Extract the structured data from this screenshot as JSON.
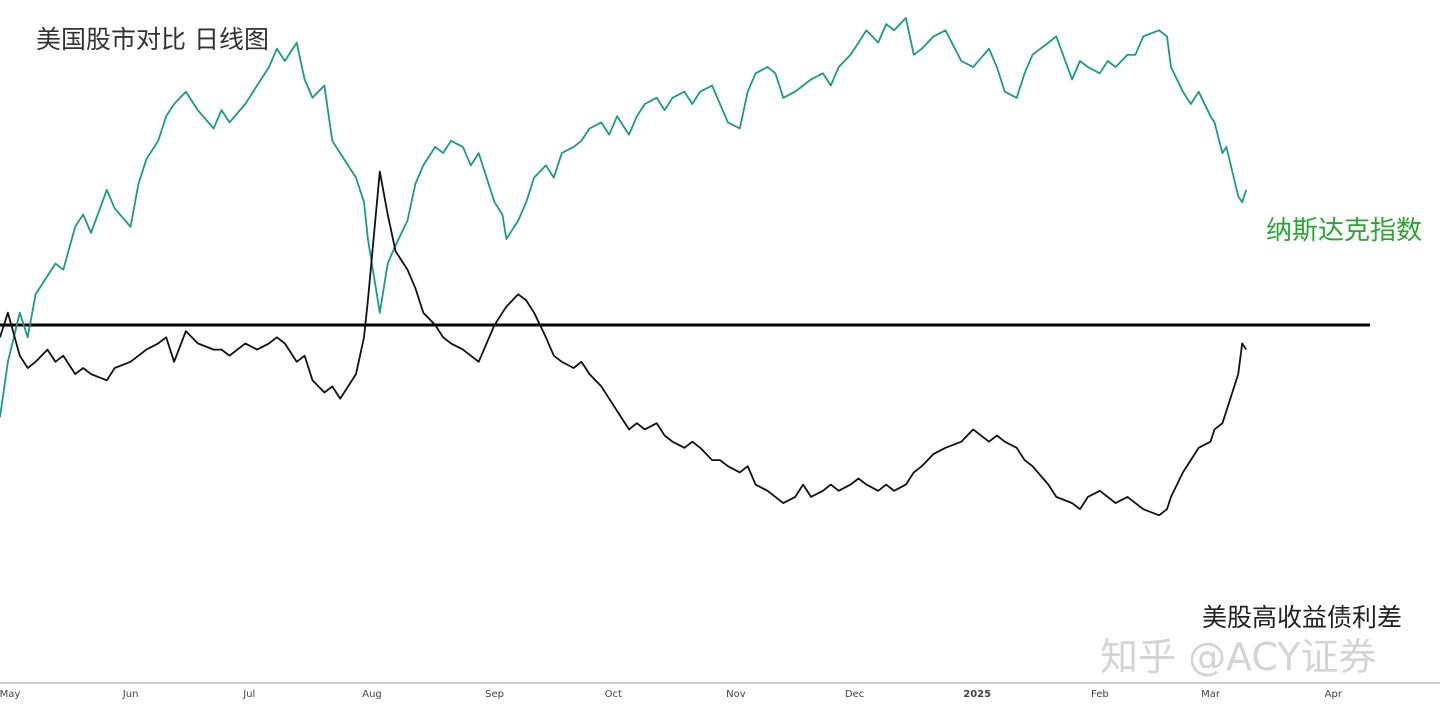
{
  "title": "美国股市对比 日线图",
  "watermark": "知乎 @ACY证券",
  "colors": {
    "nasdaq": "#1a9a8a",
    "spread": "#111111",
    "nasdaq_label": "#2aa532",
    "reference": "#000000"
  },
  "chart_data": {
    "type": "line",
    "x_labels": [
      "May",
      "Jun",
      "Jul",
      "Aug",
      "Sep",
      "Oct",
      "Nov",
      "Dec",
      "2025",
      "Feb",
      "Mar",
      "Apr"
    ],
    "x_bold": [
      "2025"
    ],
    "x_range": [
      "2024-05-01",
      "2025-04-30"
    ],
    "y_axis": "hidden",
    "ylim": [
      0,
      100
    ],
    "grid": false,
    "reference_line": {
      "y": 50
    },
    "series": [
      {
        "name": "纳斯达克指数",
        "points": [
          [
            "2024-05-01",
            35
          ],
          [
            "2024-05-03",
            44
          ],
          [
            "2024-05-06",
            52
          ],
          [
            "2024-05-08",
            48
          ],
          [
            "2024-05-10",
            55
          ],
          [
            "2024-05-13",
            58
          ],
          [
            "2024-05-15",
            60
          ],
          [
            "2024-05-17",
            59
          ],
          [
            "2024-05-20",
            66
          ],
          [
            "2024-05-22",
            68
          ],
          [
            "2024-05-24",
            65
          ],
          [
            "2024-05-28",
            72
          ],
          [
            "2024-05-30",
            69
          ],
          [
            "2024-06-03",
            66
          ],
          [
            "2024-06-05",
            73
          ],
          [
            "2024-06-07",
            77
          ],
          [
            "2024-06-10",
            80
          ],
          [
            "2024-06-12",
            84
          ],
          [
            "2024-06-14",
            86
          ],
          [
            "2024-06-17",
            88
          ],
          [
            "2024-06-20",
            85
          ],
          [
            "2024-06-24",
            82
          ],
          [
            "2024-06-26",
            85
          ],
          [
            "2024-06-28",
            83
          ],
          [
            "2024-07-02",
            86
          ],
          [
            "2024-07-05",
            89
          ],
          [
            "2024-07-08",
            92
          ],
          [
            "2024-07-10",
            95
          ],
          [
            "2024-07-12",
            93
          ],
          [
            "2024-07-15",
            96
          ],
          [
            "2024-07-17",
            90
          ],
          [
            "2024-07-19",
            87
          ],
          [
            "2024-07-22",
            89
          ],
          [
            "2024-07-24",
            80
          ],
          [
            "2024-07-26",
            78
          ],
          [
            "2024-07-30",
            74
          ],
          [
            "2024-08-01",
            70
          ],
          [
            "2024-08-02",
            64
          ],
          [
            "2024-08-05",
            52
          ],
          [
            "2024-08-07",
            60
          ],
          [
            "2024-08-09",
            63
          ],
          [
            "2024-08-12",
            67
          ],
          [
            "2024-08-14",
            73
          ],
          [
            "2024-08-16",
            76
          ],
          [
            "2024-08-19",
            79
          ],
          [
            "2024-08-21",
            78
          ],
          [
            "2024-08-23",
            80
          ],
          [
            "2024-08-26",
            79
          ],
          [
            "2024-08-28",
            76
          ],
          [
            "2024-08-30",
            78
          ],
          [
            "2024-09-03",
            70
          ],
          [
            "2024-09-05",
            68
          ],
          [
            "2024-09-06",
            64
          ],
          [
            "2024-09-09",
            67
          ],
          [
            "2024-09-11",
            70
          ],
          [
            "2024-09-13",
            74
          ],
          [
            "2024-09-16",
            76
          ],
          [
            "2024-09-18",
            74
          ],
          [
            "2024-09-20",
            78
          ],
          [
            "2024-09-23",
            79
          ],
          [
            "2024-09-25",
            80
          ],
          [
            "2024-09-27",
            82
          ],
          [
            "2024-09-30",
            83
          ],
          [
            "2024-10-02",
            81
          ],
          [
            "2024-10-04",
            84
          ],
          [
            "2024-10-07",
            81
          ],
          [
            "2024-10-09",
            84
          ],
          [
            "2024-10-11",
            86
          ],
          [
            "2024-10-14",
            87
          ],
          [
            "2024-10-16",
            85
          ],
          [
            "2024-10-18",
            87
          ],
          [
            "2024-10-21",
            88
          ],
          [
            "2024-10-23",
            86
          ],
          [
            "2024-10-25",
            88
          ],
          [
            "2024-10-28",
            89
          ],
          [
            "2024-10-30",
            86
          ],
          [
            "2024-11-01",
            83
          ],
          [
            "2024-11-04",
            82
          ],
          [
            "2024-11-06",
            88
          ],
          [
            "2024-11-08",
            91
          ],
          [
            "2024-11-11",
            92
          ],
          [
            "2024-11-13",
            91
          ],
          [
            "2024-11-15",
            87
          ],
          [
            "2024-11-18",
            88
          ],
          [
            "2024-11-20",
            89
          ],
          [
            "2024-11-22",
            90
          ],
          [
            "2024-11-25",
            91
          ],
          [
            "2024-11-27",
            89
          ],
          [
            "2024-11-29",
            92
          ],
          [
            "2024-12-02",
            94
          ],
          [
            "2024-12-04",
            96
          ],
          [
            "2024-12-06",
            98
          ],
          [
            "2024-12-09",
            96
          ],
          [
            "2024-12-11",
            99
          ],
          [
            "2024-12-13",
            98
          ],
          [
            "2024-12-16",
            100
          ],
          [
            "2024-12-18",
            94
          ],
          [
            "2024-12-20",
            95
          ],
          [
            "2024-12-23",
            97
          ],
          [
            "2024-12-26",
            98
          ],
          [
            "2024-12-30",
            93
          ],
          [
            "2025-01-02",
            92
          ],
          [
            "2025-01-06",
            95
          ],
          [
            "2025-01-08",
            92
          ],
          [
            "2025-01-10",
            88
          ],
          [
            "2025-01-13",
            87
          ],
          [
            "2025-01-15",
            91
          ],
          [
            "2025-01-17",
            94
          ],
          [
            "2025-01-21",
            96
          ],
          [
            "2025-01-23",
            97
          ],
          [
            "2025-01-27",
            90
          ],
          [
            "2025-01-29",
            93
          ],
          [
            "2025-01-31",
            92
          ],
          [
            "2025-02-03",
            91
          ],
          [
            "2025-02-05",
            93
          ],
          [
            "2025-02-07",
            92
          ],
          [
            "2025-02-10",
            94
          ],
          [
            "2025-02-12",
            94
          ],
          [
            "2025-02-14",
            97
          ],
          [
            "2025-02-18",
            98
          ],
          [
            "2025-02-20",
            97
          ],
          [
            "2025-02-21",
            92
          ],
          [
            "2025-02-24",
            88
          ],
          [
            "2025-02-26",
            86
          ],
          [
            "2025-02-28",
            88
          ],
          [
            "2025-03-03",
            84
          ],
          [
            "2025-03-04",
            83
          ],
          [
            "2025-03-06",
            78
          ],
          [
            "2025-03-07",
            79
          ],
          [
            "2025-03-10",
            71
          ],
          [
            "2025-03-11",
            70
          ],
          [
            "2025-03-12",
            72
          ]
        ]
      },
      {
        "name": "美股高收益债利差",
        "points": [
          [
            "2024-05-01",
            48
          ],
          [
            "2024-05-03",
            52
          ],
          [
            "2024-05-06",
            45
          ],
          [
            "2024-05-08",
            43
          ],
          [
            "2024-05-10",
            44
          ],
          [
            "2024-05-13",
            46
          ],
          [
            "2024-05-15",
            44
          ],
          [
            "2024-05-17",
            45
          ],
          [
            "2024-05-20",
            42
          ],
          [
            "2024-05-22",
            43
          ],
          [
            "2024-05-24",
            42
          ],
          [
            "2024-05-28",
            41
          ],
          [
            "2024-05-30",
            43
          ],
          [
            "2024-06-03",
            44
          ],
          [
            "2024-06-05",
            45
          ],
          [
            "2024-06-07",
            46
          ],
          [
            "2024-06-10",
            47
          ],
          [
            "2024-06-12",
            48
          ],
          [
            "2024-06-14",
            44
          ],
          [
            "2024-06-17",
            49
          ],
          [
            "2024-06-20",
            47
          ],
          [
            "2024-06-24",
            46
          ],
          [
            "2024-06-26",
            46
          ],
          [
            "2024-06-28",
            45
          ],
          [
            "2024-07-02",
            47
          ],
          [
            "2024-07-05",
            46
          ],
          [
            "2024-07-08",
            47
          ],
          [
            "2024-07-10",
            48
          ],
          [
            "2024-07-12",
            47
          ],
          [
            "2024-07-15",
            44
          ],
          [
            "2024-07-17",
            45
          ],
          [
            "2024-07-19",
            41
          ],
          [
            "2024-07-22",
            39
          ],
          [
            "2024-07-24",
            40
          ],
          [
            "2024-07-26",
            38
          ],
          [
            "2024-07-30",
            42
          ],
          [
            "2024-08-01",
            48
          ],
          [
            "2024-08-02",
            54
          ],
          [
            "2024-08-05",
            75
          ],
          [
            "2024-08-07",
            68
          ],
          [
            "2024-08-09",
            62
          ],
          [
            "2024-08-12",
            59
          ],
          [
            "2024-08-14",
            56
          ],
          [
            "2024-08-16",
            52
          ],
          [
            "2024-08-19",
            50
          ],
          [
            "2024-08-21",
            48
          ],
          [
            "2024-08-23",
            47
          ],
          [
            "2024-08-26",
            46
          ],
          [
            "2024-08-28",
            45
          ],
          [
            "2024-08-30",
            44
          ],
          [
            "2024-09-03",
            50
          ],
          [
            "2024-09-05",
            52
          ],
          [
            "2024-09-06",
            53
          ],
          [
            "2024-09-09",
            55
          ],
          [
            "2024-09-11",
            54
          ],
          [
            "2024-09-13",
            52
          ],
          [
            "2024-09-16",
            48
          ],
          [
            "2024-09-18",
            45
          ],
          [
            "2024-09-20",
            44
          ],
          [
            "2024-09-23",
            43
          ],
          [
            "2024-09-25",
            44
          ],
          [
            "2024-09-27",
            42
          ],
          [
            "2024-09-30",
            40
          ],
          [
            "2024-10-02",
            38
          ],
          [
            "2024-10-04",
            36
          ],
          [
            "2024-10-07",
            33
          ],
          [
            "2024-10-09",
            34
          ],
          [
            "2024-10-11",
            33
          ],
          [
            "2024-10-14",
            34
          ],
          [
            "2024-10-16",
            32
          ],
          [
            "2024-10-18",
            31
          ],
          [
            "2024-10-21",
            30
          ],
          [
            "2024-10-23",
            31
          ],
          [
            "2024-10-25",
            30
          ],
          [
            "2024-10-28",
            28
          ],
          [
            "2024-10-30",
            28
          ],
          [
            "2024-11-01",
            27
          ],
          [
            "2024-11-04",
            26
          ],
          [
            "2024-11-06",
            27
          ],
          [
            "2024-11-08",
            24
          ],
          [
            "2024-11-11",
            23
          ],
          [
            "2024-11-13",
            22
          ],
          [
            "2024-11-15",
            21
          ],
          [
            "2024-11-18",
            22
          ],
          [
            "2024-11-20",
            24
          ],
          [
            "2024-11-22",
            22
          ],
          [
            "2024-11-25",
            23
          ],
          [
            "2024-11-27",
            24
          ],
          [
            "2024-11-29",
            23
          ],
          [
            "2024-12-02",
            24
          ],
          [
            "2024-12-04",
            25
          ],
          [
            "2024-12-06",
            24
          ],
          [
            "2024-12-09",
            23
          ],
          [
            "2024-12-11",
            24
          ],
          [
            "2024-12-13",
            23
          ],
          [
            "2024-12-16",
            24
          ],
          [
            "2024-12-18",
            26
          ],
          [
            "2024-12-20",
            27
          ],
          [
            "2024-12-23",
            29
          ],
          [
            "2024-12-26",
            30
          ],
          [
            "2024-12-30",
            31
          ],
          [
            "2025-01-02",
            33
          ],
          [
            "2025-01-06",
            31
          ],
          [
            "2025-01-08",
            32
          ],
          [
            "2025-01-10",
            31
          ],
          [
            "2025-01-13",
            30
          ],
          [
            "2025-01-15",
            28
          ],
          [
            "2025-01-17",
            27
          ],
          [
            "2025-01-21",
            24
          ],
          [
            "2025-01-23",
            22
          ],
          [
            "2025-01-27",
            21
          ],
          [
            "2025-01-29",
            20
          ],
          [
            "2025-01-31",
            22
          ],
          [
            "2025-02-03",
            23
          ],
          [
            "2025-02-05",
            22
          ],
          [
            "2025-02-07",
            21
          ],
          [
            "2025-02-10",
            22
          ],
          [
            "2025-02-12",
            21
          ],
          [
            "2025-02-14",
            20
          ],
          [
            "2025-02-18",
            19
          ],
          [
            "2025-02-20",
            20
          ],
          [
            "2025-02-21",
            22
          ],
          [
            "2025-02-24",
            26
          ],
          [
            "2025-02-26",
            28
          ],
          [
            "2025-02-28",
            30
          ],
          [
            "2025-03-03",
            31
          ],
          [
            "2025-03-04",
            33
          ],
          [
            "2025-03-06",
            34
          ],
          [
            "2025-03-07",
            36
          ],
          [
            "2025-03-10",
            42
          ],
          [
            "2025-03-11",
            47
          ],
          [
            "2025-03-12",
            46
          ]
        ]
      }
    ]
  }
}
